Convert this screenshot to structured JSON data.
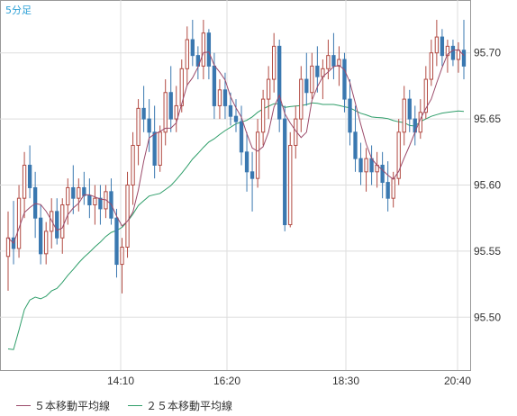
{
  "period_label": "5分足",
  "chart_data": {
    "type": "candlestick",
    "y_ticks": [
      "95.70",
      "95.65",
      "95.60",
      "95.55",
      "95.50"
    ],
    "x_ticks": [
      "14:10",
      "16:20",
      "18:30",
      "20:40"
    ],
    "ylim": [
      95.46,
      95.74
    ],
    "grid": true,
    "colors": {
      "up": "#b24b43",
      "down": "#3a78b0",
      "ma5": "#9b4a6a",
      "ma25": "#2f9e6a"
    },
    "series": [
      {
        "name": "５本移動平均線",
        "kind": "ma5"
      },
      {
        "name": "２５本移動平均線",
        "kind": "ma25"
      }
    ],
    "ohlc": [
      [
        95.546,
        95.58,
        95.52,
        95.56
      ],
      [
        95.56,
        95.588,
        95.54,
        95.552
      ],
      [
        95.552,
        95.6,
        95.545,
        95.59
      ],
      [
        95.59,
        95.625,
        95.575,
        95.615
      ],
      [
        95.615,
        95.63,
        95.59,
        95.598
      ],
      [
        95.598,
        95.61,
        95.56,
        95.575
      ],
      [
        95.575,
        95.585,
        95.54,
        95.548
      ],
      [
        95.548,
        95.572,
        95.54,
        95.565
      ],
      [
        95.565,
        95.59,
        95.552,
        95.58
      ],
      [
        95.58,
        95.59,
        95.555,
        95.56
      ],
      [
        95.56,
        95.59,
        95.548,
        95.585
      ],
      [
        95.585,
        95.605,
        95.57,
        95.598
      ],
      [
        95.598,
        95.615,
        95.578,
        95.59
      ],
      [
        95.59,
        95.605,
        95.58,
        95.598
      ],
      [
        95.598,
        95.61,
        95.585,
        95.592
      ],
      [
        95.592,
        95.605,
        95.575,
        95.585
      ],
      [
        95.585,
        95.6,
        95.57,
        95.59
      ],
      [
        95.59,
        95.6,
        95.57,
        95.582
      ],
      [
        95.582,
        95.6,
        95.575,
        95.595
      ],
      [
        95.595,
        95.605,
        95.57,
        95.575
      ],
      [
        95.575,
        95.582,
        95.53,
        95.54
      ],
      [
        95.54,
        95.56,
        95.518,
        95.553
      ],
      [
        95.553,
        95.61,
        95.545,
        95.6
      ],
      [
        95.6,
        95.64,
        95.585,
        95.63
      ],
      [
        95.63,
        95.665,
        95.615,
        95.658
      ],
      [
        95.658,
        95.675,
        95.64,
        95.65
      ],
      [
        95.65,
        95.665,
        95.625,
        95.64
      ],
      [
        95.64,
        95.66,
        95.605,
        95.615
      ],
      [
        95.615,
        95.645,
        95.61,
        95.64
      ],
      [
        95.64,
        95.68,
        95.63,
        95.67
      ],
      [
        95.67,
        95.69,
        95.64,
        95.65
      ],
      [
        95.65,
        95.675,
        95.64,
        95.66
      ],
      [
        95.66,
        95.695,
        95.655,
        95.688
      ],
      [
        95.688,
        95.72,
        95.675,
        95.71
      ],
      [
        95.71,
        95.725,
        95.69,
        95.698
      ],
      [
        95.698,
        95.705,
        95.68,
        95.69
      ],
      [
        95.69,
        95.725,
        95.68,
        95.715
      ],
      [
        95.715,
        95.718,
        95.68,
        95.69
      ],
      [
        95.69,
        95.7,
        95.65,
        95.66
      ],
      [
        95.66,
        95.68,
        95.65,
        95.672
      ],
      [
        95.672,
        95.685,
        95.65,
        95.66
      ],
      [
        95.66,
        95.67,
        95.645,
        95.652
      ],
      [
        95.652,
        95.665,
        95.64,
        95.648
      ],
      [
        95.648,
        95.66,
        95.615,
        95.625
      ],
      [
        95.625,
        95.64,
        95.595,
        95.61
      ],
      [
        95.61,
        95.625,
        95.58,
        95.605
      ],
      [
        95.605,
        95.65,
        95.598,
        95.64
      ],
      [
        95.64,
        95.672,
        95.63,
        95.665
      ],
      [
        95.665,
        95.69,
        95.65,
        95.68
      ],
      [
        95.68,
        95.715,
        95.67,
        95.705
      ],
      [
        95.705,
        95.71,
        95.64,
        95.65
      ],
      [
        95.65,
        95.66,
        95.565,
        95.57
      ],
      [
        95.57,
        95.64,
        95.568,
        95.63
      ],
      [
        95.63,
        95.66,
        95.62,
        95.65
      ],
      [
        95.65,
        95.69,
        95.64,
        95.68
      ],
      [
        95.68,
        95.7,
        95.66,
        95.67
      ],
      [
        95.67,
        95.7,
        95.665,
        95.69
      ],
      [
        95.69,
        95.705,
        95.67,
        95.682
      ],
      [
        95.682,
        95.695,
        95.665,
        95.688
      ],
      [
        95.688,
        95.71,
        95.68,
        95.698
      ],
      [
        95.698,
        95.715,
        95.68,
        95.69
      ],
      [
        95.69,
        95.705,
        95.675,
        95.695
      ],
      [
        95.695,
        95.7,
        95.655,
        95.665
      ],
      [
        95.665,
        95.68,
        95.63,
        95.64
      ],
      [
        95.64,
        95.66,
        95.61,
        95.62
      ],
      [
        95.62,
        95.632,
        95.6,
        95.61
      ],
      [
        95.61,
        95.628,
        95.595,
        95.62
      ],
      [
        95.62,
        95.63,
        95.6,
        95.61
      ],
      [
        95.61,
        95.625,
        95.598,
        95.615
      ],
      [
        95.615,
        95.625,
        95.59,
        95.602
      ],
      [
        95.602,
        95.618,
        95.58,
        95.59
      ],
      [
        95.59,
        95.61,
        95.583,
        95.605
      ],
      [
        95.605,
        95.65,
        95.6,
        95.64
      ],
      [
        95.64,
        95.675,
        95.63,
        95.665
      ],
      [
        95.665,
        95.672,
        95.64,
        95.65
      ],
      [
        95.65,
        95.66,
        95.63,
        95.64
      ],
      [
        95.64,
        95.665,
        95.635,
        95.655
      ],
      [
        95.655,
        95.69,
        95.65,
        95.68
      ],
      [
        95.68,
        95.71,
        95.675,
        95.7
      ],
      [
        95.7,
        95.725,
        95.69,
        95.712
      ],
      [
        95.712,
        95.718,
        95.69,
        95.698
      ],
      [
        95.698,
        95.71,
        95.685,
        95.705
      ],
      [
        95.705,
        95.71,
        95.69,
        95.695
      ],
      [
        95.695,
        95.708,
        95.685,
        95.702
      ],
      [
        95.702,
        95.725,
        95.68,
        95.69
      ]
    ]
  }
}
